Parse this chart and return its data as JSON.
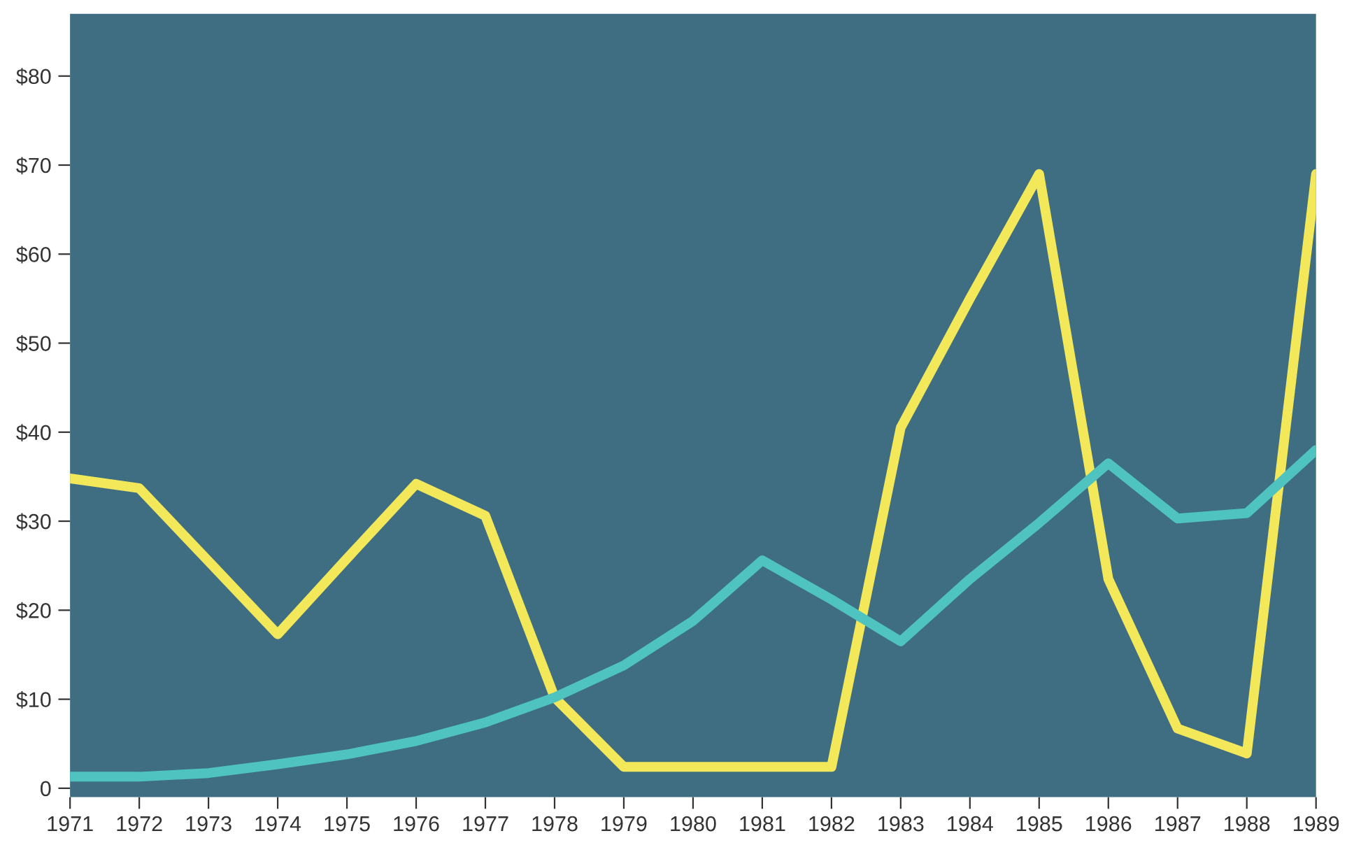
{
  "chart_data": {
    "type": "line",
    "categories": [
      "1971",
      "1972",
      "1973",
      "1974",
      "1975",
      "1976",
      "1977",
      "1978",
      "1979",
      "1980",
      "1981",
      "1982",
      "1983",
      "1984",
      "1985",
      "1986",
      "1987",
      "1988",
      "1989"
    ],
    "series": [
      {
        "color": "#f2e85a",
        "values": [
          34.8,
          33.7,
          25.5,
          17.3,
          25.8,
          34.2,
          30.6,
          10.2,
          2.4,
          2.4,
          2.4,
          2.4,
          40.5,
          55,
          69,
          23.5,
          6.7,
          3.9,
          69
        ]
      },
      {
        "color": "#4ec3c0",
        "values": [
          1.3,
          1.3,
          1.7,
          2.7,
          3.8,
          5.3,
          7.4,
          10.2,
          13.8,
          18.8,
          25.6,
          21.2,
          16.5,
          23.5,
          29.8,
          36.5,
          30.3,
          30.9,
          38
        ]
      }
    ],
    "ylim": [
      -1,
      87
    ],
    "yticks": [
      {
        "value": 0,
        "label": "0"
      },
      {
        "value": 10,
        "label": "$10"
      },
      {
        "value": 20,
        "label": "$20"
      },
      {
        "value": 30,
        "label": "$30"
      },
      {
        "value": 40,
        "label": "$40"
      },
      {
        "value": 50,
        "label": "$50"
      },
      {
        "value": 60,
        "label": "$60"
      },
      {
        "value": 70,
        "label": "$70"
      },
      {
        "value": 80,
        "label": "$80"
      }
    ],
    "grid": false,
    "legend": false,
    "marker": "none",
    "line_style": "solid"
  }
}
